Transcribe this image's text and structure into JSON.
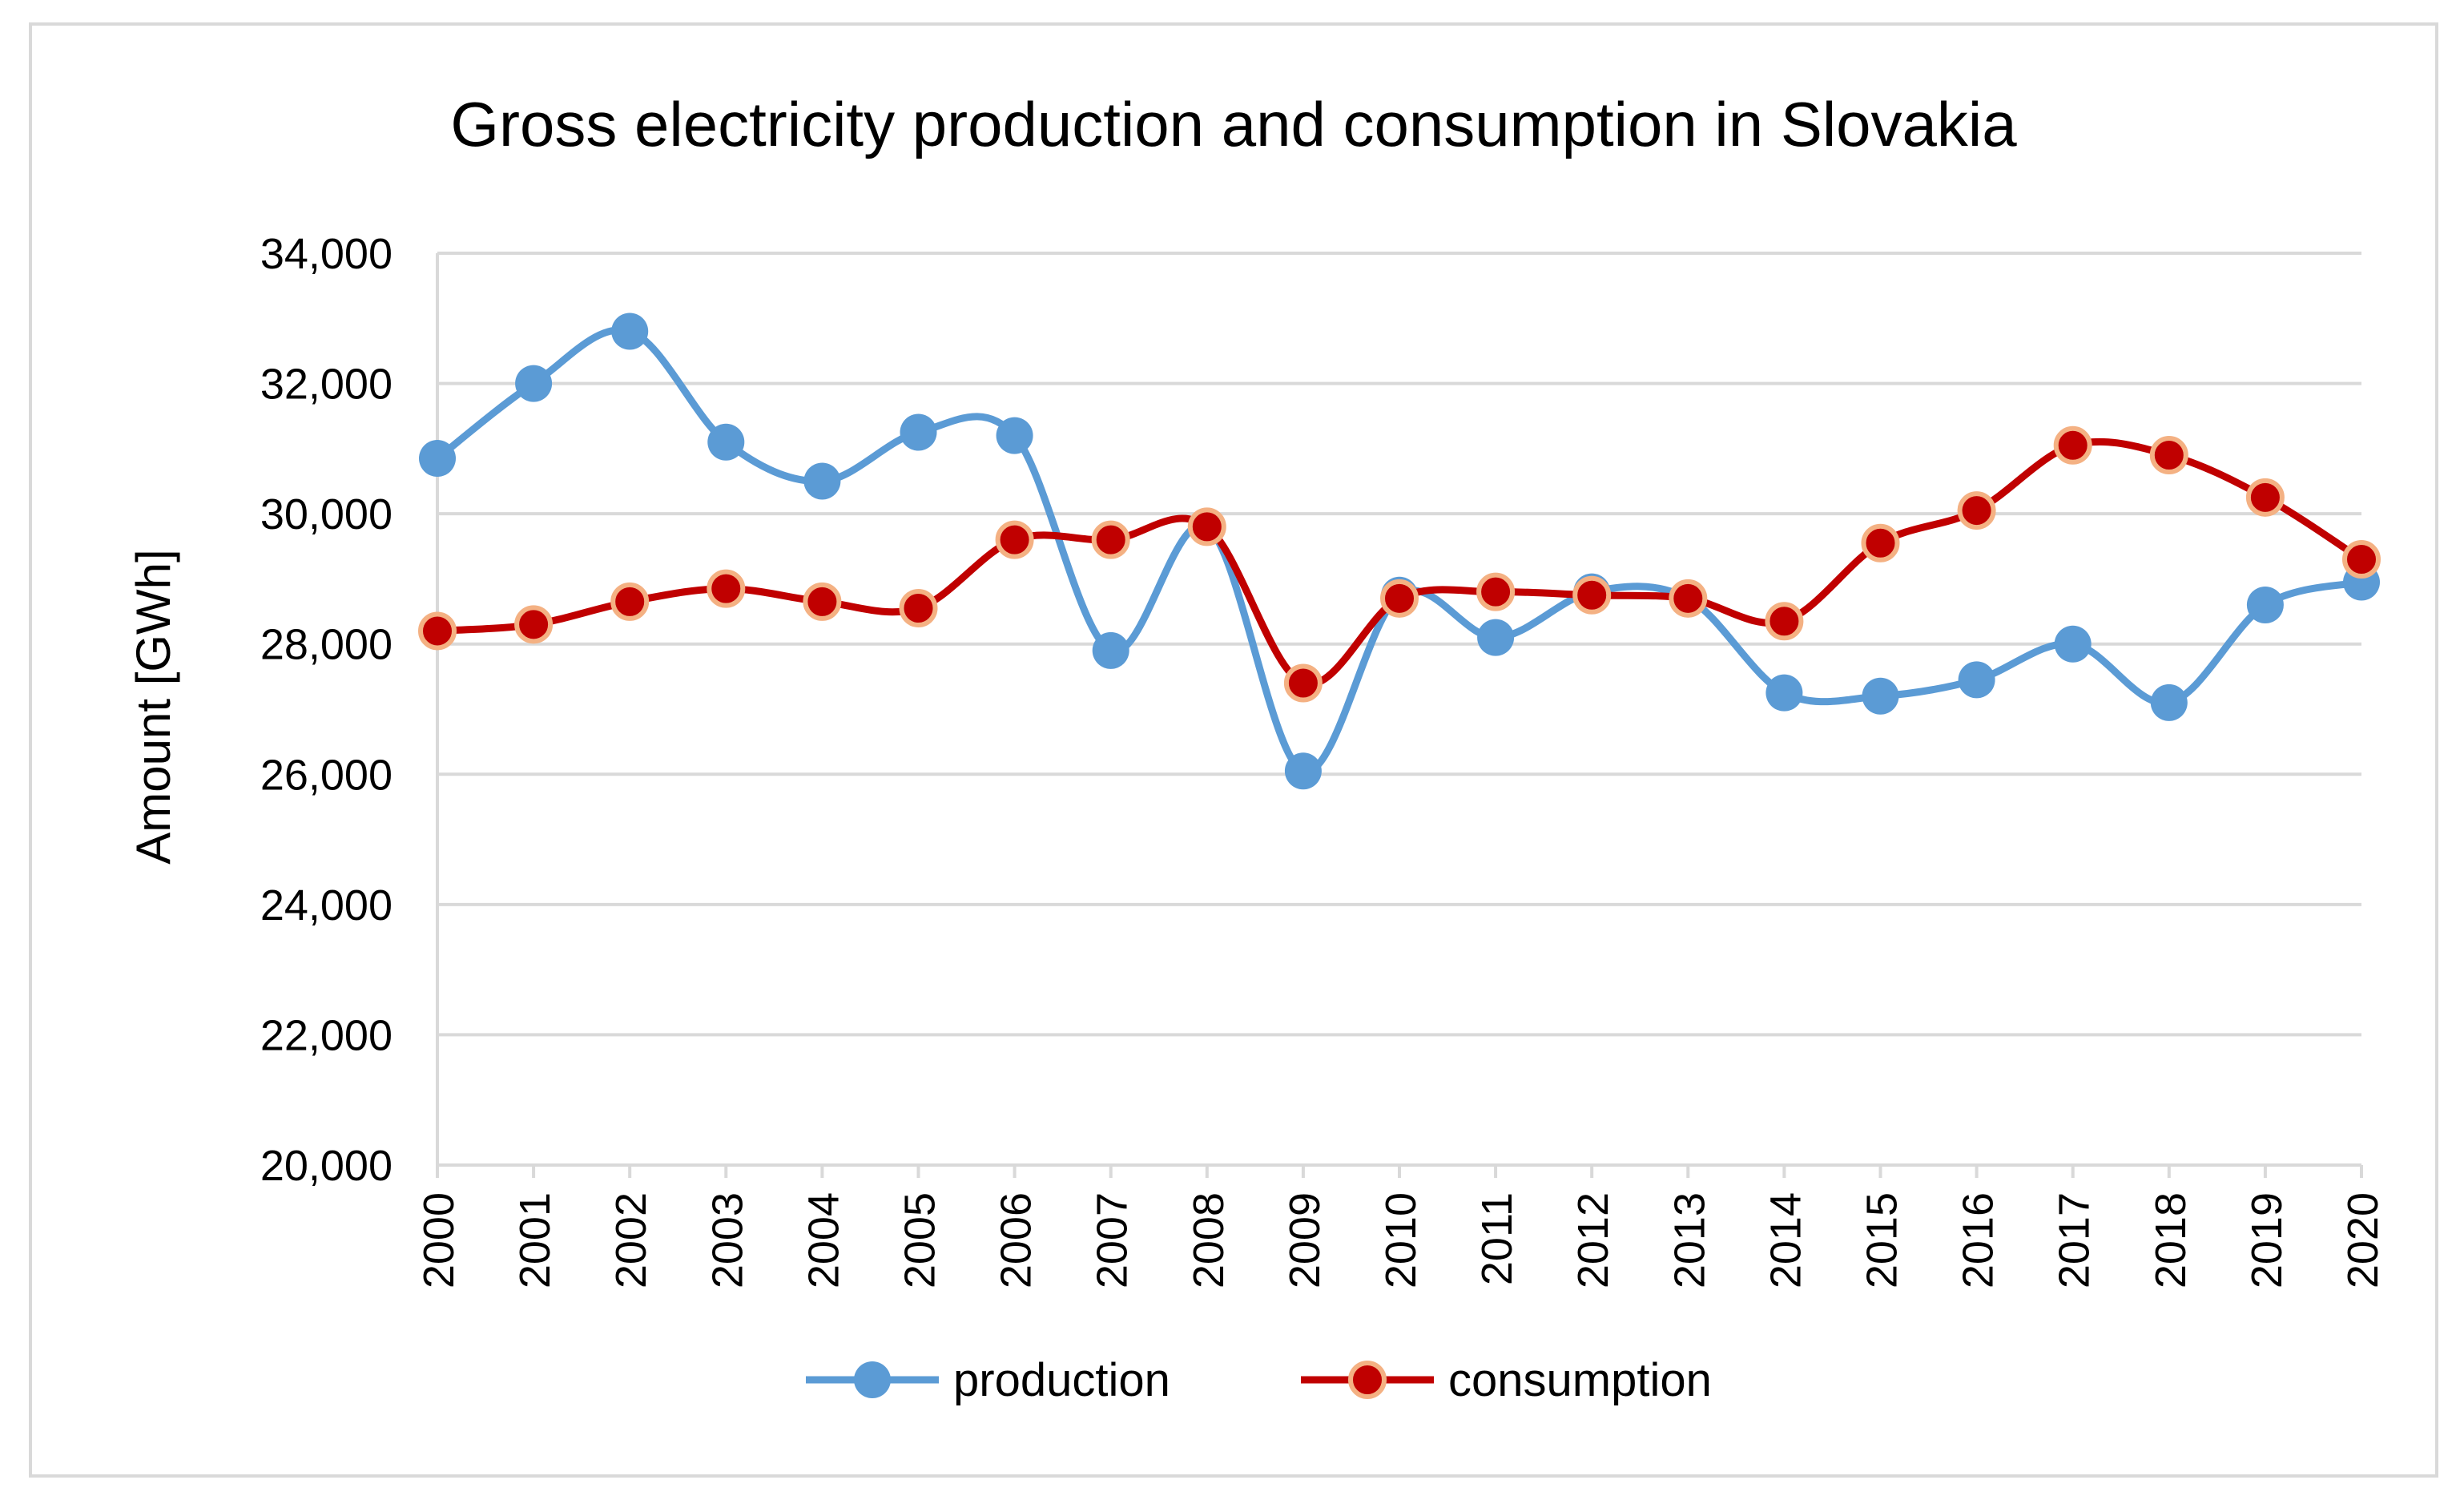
{
  "chart_data": {
    "type": "line",
    "title": "Gross electricity production and consumption in Slovakia",
    "xlabel": "",
    "ylabel": "Amount [GWh]",
    "ylim": [
      20000,
      34000
    ],
    "yticks": [
      20000,
      22000,
      24000,
      26000,
      28000,
      30000,
      32000,
      34000
    ],
    "ytick_labels": [
      "20,000",
      "22,000",
      "24,000",
      "26,000",
      "28,000",
      "30,000",
      "32,000",
      "34,000"
    ],
    "grid": true,
    "legend_position": "bottom",
    "categories": [
      "2000",
      "2001",
      "2002",
      "2003",
      "2004",
      "2005",
      "2006",
      "2007",
      "2008",
      "2009",
      "2010",
      "2011",
      "2012",
      "2013",
      "2014",
      "2015",
      "2016",
      "2017",
      "2018",
      "2019",
      "2020"
    ],
    "series": [
      {
        "name": "production",
        "color": "#5b9bd5",
        "marker_fill": "#5b9bd5",
        "values": [
          30850,
          32000,
          32800,
          31100,
          30500,
          31250,
          31200,
          27900,
          29800,
          26050,
          28750,
          28100,
          28800,
          28700,
          27250,
          27200,
          27450,
          28000,
          27100,
          28600,
          28950
        ]
      },
      {
        "name": "consumption",
        "color": "#c00000",
        "marker_fill": "#c00000",
        "marker_stroke": "#f4b183",
        "values": [
          28200,
          28300,
          28650,
          28850,
          28650,
          28550,
          29600,
          29600,
          29800,
          27400,
          28700,
          28800,
          28750,
          28700,
          28350,
          29550,
          30050,
          31050,
          30900,
          30250,
          29300
        ]
      }
    ]
  }
}
